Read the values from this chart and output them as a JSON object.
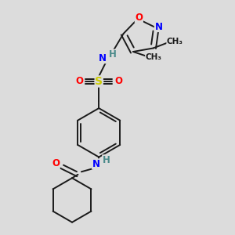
{
  "background_color": "#dcdcdc",
  "bond_color": "#1a1a1a",
  "atom_colors": {
    "N": "#0000ff",
    "O": "#ff0000",
    "S": "#cccc00",
    "C": "#1a1a1a",
    "H": "#4a8a8a"
  },
  "lw": 1.4,
  "font_size": 8.5
}
